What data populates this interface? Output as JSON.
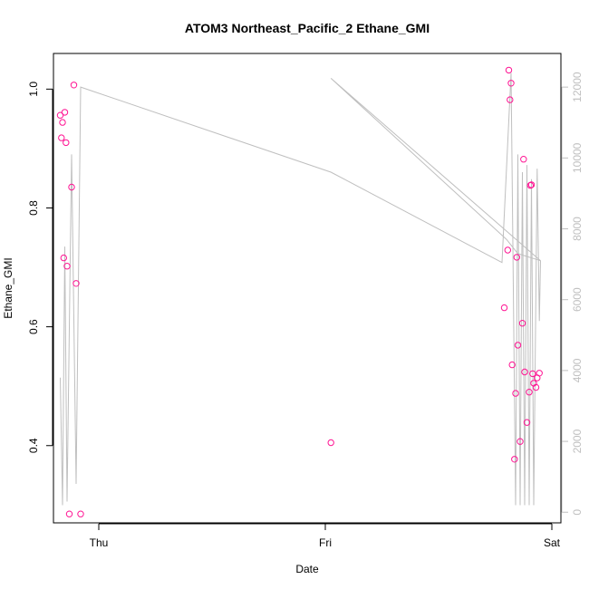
{
  "chart_data": {
    "type": "scatter",
    "title": "ATOM3 Northeast_Pacific_2 Ethane_GMI",
    "xlabel": "Date",
    "ylabel": "Ethane_GMI",
    "x_ticks": [
      {
        "label": "Thu",
        "value": 0
      },
      {
        "label": "Fri",
        "value": 1
      },
      {
        "label": "Sat",
        "value": 2
      }
    ],
    "xlim": [
      -0.2,
      2.04
    ],
    "ylim": [
      0.27,
      1.06
    ],
    "y_ticks": [
      0.4,
      0.6,
      0.8,
      1.0
    ],
    "y2_ticks": [
      0,
      2000,
      4000,
      6000,
      8000,
      10000,
      12000
    ],
    "y2lim": [
      -300,
      12950
    ],
    "colors": {
      "points": "#ff1493",
      "line": "#bfbfbf",
      "axis": "#000000",
      "right_axis": "#bfbfbf"
    },
    "series": [
      {
        "axis": "left",
        "style": "points",
        "points": [
          [
            -0.17,
            0.956
          ],
          [
            -0.165,
            0.918
          ],
          [
            -0.16,
            0.944
          ],
          [
            -0.155,
            0.716
          ],
          [
            -0.15,
            0.961
          ],
          [
            -0.145,
            0.91
          ],
          [
            -0.14,
            0.702
          ],
          [
            -0.13,
            0.285
          ],
          [
            -0.12,
            0.835
          ],
          [
            -0.11,
            1.007
          ],
          [
            -0.1,
            0.673
          ],
          [
            -0.08,
            0.285
          ],
          [
            1.025,
            0.405
          ],
          [
            1.79,
            0.632
          ],
          [
            1.805,
            0.729
          ],
          [
            1.81,
            1.032
          ],
          [
            1.815,
            0.982
          ],
          [
            1.82,
            1.01
          ],
          [
            1.825,
            0.536
          ],
          [
            1.835,
            0.377
          ],
          [
            1.84,
            0.488
          ],
          [
            1.845,
            0.717
          ],
          [
            1.85,
            0.569
          ],
          [
            1.86,
            0.407
          ],
          [
            1.87,
            0.606
          ],
          [
            1.875,
            0.882
          ],
          [
            1.88,
            0.524
          ],
          [
            1.89,
            0.439
          ],
          [
            1.9,
            0.49
          ],
          [
            1.905,
            0.838
          ],
          [
            1.91,
            0.839
          ],
          [
            1.915,
            0.521
          ],
          [
            1.92,
            0.505
          ],
          [
            1.93,
            0.498
          ],
          [
            1.935,
            0.514
          ],
          [
            1.945,
            0.522
          ]
        ]
      },
      {
        "axis": "right",
        "style": "line",
        "points": [
          [
            -0.17,
            3800
          ],
          [
            -0.16,
            200
          ],
          [
            -0.15,
            7500
          ],
          [
            -0.14,
            300
          ],
          [
            -0.12,
            10100
          ],
          [
            -0.1,
            800
          ],
          [
            -0.08,
            12000
          ],
          [
            1.025,
            9600
          ],
          [
            1.78,
            7050
          ],
          [
            1.82,
            12400
          ],
          [
            1.84,
            200
          ],
          [
            1.85,
            10100
          ],
          [
            1.86,
            200
          ],
          [
            1.87,
            9600
          ],
          [
            1.88,
            200
          ],
          [
            1.89,
            9800
          ],
          [
            1.9,
            200
          ],
          [
            1.91,
            9400
          ],
          [
            1.92,
            200
          ],
          [
            1.935,
            9700
          ],
          [
            1.945,
            5400
          ],
          [
            1.95,
            7100
          ],
          [
            1.025,
            12250
          ],
          [
            1.8,
            7700
          ],
          [
            1.85,
            7300
          ],
          [
            1.95,
            7100
          ]
        ]
      }
    ]
  }
}
